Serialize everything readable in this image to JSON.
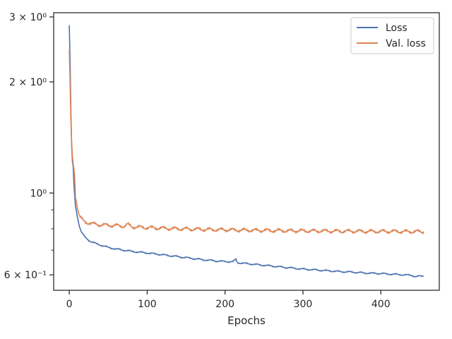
{
  "chart_data": {
    "type": "line",
    "title": "",
    "xlabel": "Epochs",
    "ylabel": "",
    "yscale": "log",
    "xlim": [
      -20,
      475
    ],
    "ylim": [
      0.545,
      3.08
    ],
    "x_ticks": [
      0,
      100,
      200,
      300,
      400
    ],
    "x_tick_labels": [
      "0",
      "100",
      "200",
      "300",
      "400"
    ],
    "y_major_ticks": [
      {
        "value": 0.6,
        "label": "6 × 10⁻¹"
      },
      {
        "value": 1.0,
        "label": "10⁰"
      },
      {
        "value": 2.0,
        "label": "2 × 10⁰"
      },
      {
        "value": 3.0,
        "label": "3 × 10⁰"
      }
    ],
    "y_minor_ticks": [
      0.7,
      0.8,
      0.9
    ],
    "grid": false,
    "legend_position": "top-right",
    "series": [
      {
        "name": "Loss",
        "color": "#4c72b0",
        "x": [
          0,
          1,
          2,
          3,
          4,
          5,
          6,
          7,
          8,
          9,
          10,
          12,
          14,
          16,
          18,
          20,
          25,
          30,
          35,
          40,
          50,
          60,
          70,
          80,
          90,
          100,
          110,
          120,
          130,
          140,
          150,
          160,
          170,
          180,
          190,
          200,
          210,
          213,
          214,
          215,
          216,
          220,
          230,
          240,
          250,
          260,
          270,
          280,
          290,
          300,
          310,
          320,
          330,
          340,
          350,
          360,
          370,
          380,
          390,
          400,
          410,
          420,
          430,
          440,
          445,
          450,
          455
        ],
        "y": [
          2.85,
          2.3,
          1.7,
          1.35,
          1.22,
          1.18,
          1.05,
          0.98,
          0.92,
          0.9,
          0.87,
          0.83,
          0.8,
          0.78,
          0.77,
          0.76,
          0.745,
          0.735,
          0.728,
          0.723,
          0.712,
          0.705,
          0.7,
          0.695,
          0.691,
          0.688,
          0.684,
          0.68,
          0.676,
          0.672,
          0.668,
          0.664,
          0.66,
          0.657,
          0.654,
          0.652,
          0.651,
          0.658,
          0.662,
          0.652,
          0.648,
          0.646,
          0.643,
          0.64,
          0.637,
          0.634,
          0.631,
          0.628,
          0.625,
          0.622,
          0.62,
          0.618,
          0.616,
          0.614,
          0.612,
          0.611,
          0.609,
          0.607,
          0.606,
          0.605,
          0.603,
          0.602,
          0.6,
          0.598,
          0.593,
          0.595,
          0.596
        ]
      },
      {
        "name": "Val. loss",
        "color": "#dd8452",
        "x": [
          0,
          1,
          2,
          3,
          4,
          5,
          6,
          7,
          8,
          9,
          10,
          12,
          14,
          16,
          18,
          20,
          25,
          30,
          35,
          40,
          50,
          60,
          70,
          75,
          80,
          90,
          100,
          110,
          120,
          130,
          140,
          150,
          160,
          170,
          180,
          190,
          200,
          210,
          220,
          230,
          240,
          250,
          260,
          270,
          280,
          290,
          300,
          310,
          320,
          330,
          340,
          350,
          360,
          370,
          380,
          390,
          400,
          410,
          420,
          430,
          440,
          450,
          455
        ],
        "y": [
          2.45,
          2.0,
          1.6,
          1.38,
          1.26,
          1.2,
          1.16,
          1.1,
          0.97,
          0.95,
          0.92,
          0.88,
          0.86,
          0.85,
          0.84,
          0.835,
          0.83,
          0.825,
          0.822,
          0.82,
          0.818,
          0.816,
          0.813,
          0.822,
          0.81,
          0.808,
          0.806,
          0.804,
          0.803,
          0.801,
          0.8,
          0.799,
          0.798,
          0.797,
          0.796,
          0.795,
          0.795,
          0.794,
          0.793,
          0.793,
          0.792,
          0.792,
          0.791,
          0.791,
          0.79,
          0.79,
          0.79,
          0.789,
          0.789,
          0.789,
          0.788,
          0.788,
          0.788,
          0.788,
          0.787,
          0.787,
          0.787,
          0.787,
          0.787,
          0.786,
          0.786,
          0.786,
          0.786
        ]
      }
    ]
  }
}
